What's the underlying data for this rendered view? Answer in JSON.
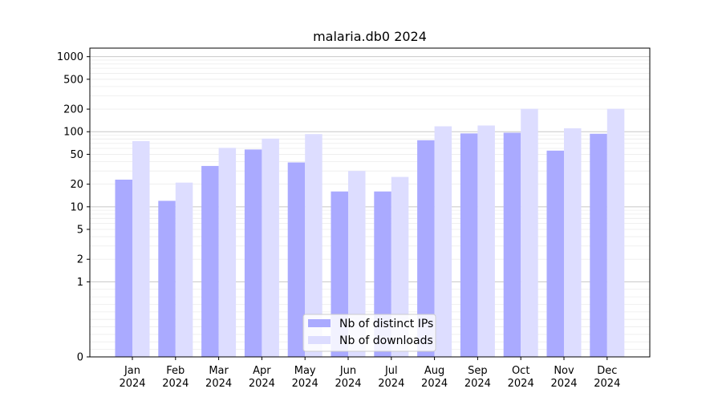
{
  "chart_data": {
    "type": "bar",
    "title": "malaria.db0 2024",
    "xlabel": "",
    "ylabel": "",
    "scale": "symlog",
    "ylim": [
      0,
      1300
    ],
    "yticks": [
      0,
      1,
      2,
      5,
      10,
      20,
      50,
      100,
      200,
      500,
      1000
    ],
    "categories": [
      {
        "month": "Jan",
        "year": "2024"
      },
      {
        "month": "Feb",
        "year": "2024"
      },
      {
        "month": "Mar",
        "year": "2024"
      },
      {
        "month": "Apr",
        "year": "2024"
      },
      {
        "month": "May",
        "year": "2024"
      },
      {
        "month": "Jun",
        "year": "2024"
      },
      {
        "month": "Jul",
        "year": "2024"
      },
      {
        "month": "Aug",
        "year": "2024"
      },
      {
        "month": "Sep",
        "year": "2024"
      },
      {
        "month": "Oct",
        "year": "2024"
      },
      {
        "month": "Nov",
        "year": "2024"
      },
      {
        "month": "Dec",
        "year": "2024"
      }
    ],
    "series": [
      {
        "name": "Nb of distinct IPs",
        "color": "#aaaaff",
        "values": [
          23,
          12,
          35,
          58,
          39,
          16,
          16,
          77,
          95,
          97,
          56,
          94
        ]
      },
      {
        "name": "Nb of downloads",
        "color": "#ddddff",
        "values": [
          75,
          21,
          61,
          81,
          93,
          30,
          25,
          118,
          121,
          202,
          111,
          202
        ]
      }
    ],
    "grid": {
      "major": [
        10,
        100
      ],
      "minor": true
    },
    "legend_position": "bottom-center"
  }
}
